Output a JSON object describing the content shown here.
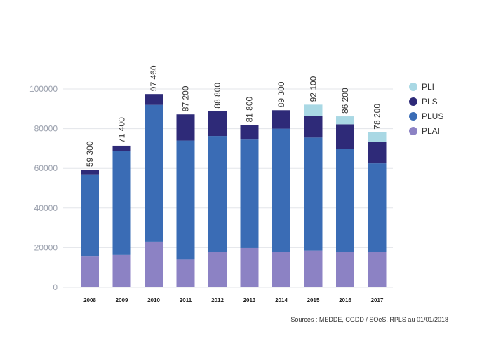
{
  "chart_data": {
    "type": "bar",
    "stacked": true,
    "categories": [
      "2008",
      "2009",
      "2010",
      "2011",
      "2012",
      "2013",
      "2014",
      "2015",
      "2016",
      "2017"
    ],
    "series": [
      {
        "name": "PLAI",
        "color": "#8c82c4",
        "values": [
          15500,
          16300,
          23000,
          14000,
          17800,
          19800,
          18000,
          18500,
          18000,
          17800
        ]
      },
      {
        "name": "PLUS",
        "color": "#3a6cb5",
        "values": [
          41500,
          52300,
          69000,
          60000,
          58500,
          54700,
          62000,
          57000,
          51700,
          44700
        ]
      },
      {
        "name": "PLS",
        "color": "#2e2a78",
        "values": [
          2300,
          2800,
          5460,
          13200,
          12500,
          7300,
          9300,
          11000,
          12500,
          10900
        ]
      },
      {
        "name": "PLI",
        "color": "#a9d8e4",
        "values": [
          0,
          0,
          0,
          0,
          0,
          0,
          0,
          5600,
          4000,
          4800
        ]
      }
    ],
    "totals": [
      "59 300",
      "71 400",
      "97 460",
      "87 200",
      "88 800",
      "81 800",
      "89 300",
      "92 100",
      "86 200",
      "78 200"
    ],
    "yticks": [
      "0",
      "20000",
      "40000",
      "60000",
      "80000",
      "100000"
    ],
    "ylim": [
      0,
      100000
    ],
    "legend_order": [
      "PLI",
      "PLS",
      "PLUS",
      "PLAI"
    ],
    "legend_position": "right",
    "grid": true,
    "source": "Sources : MEDDE, CGDD / SOeS, RPLS au 01/01/2018"
  }
}
